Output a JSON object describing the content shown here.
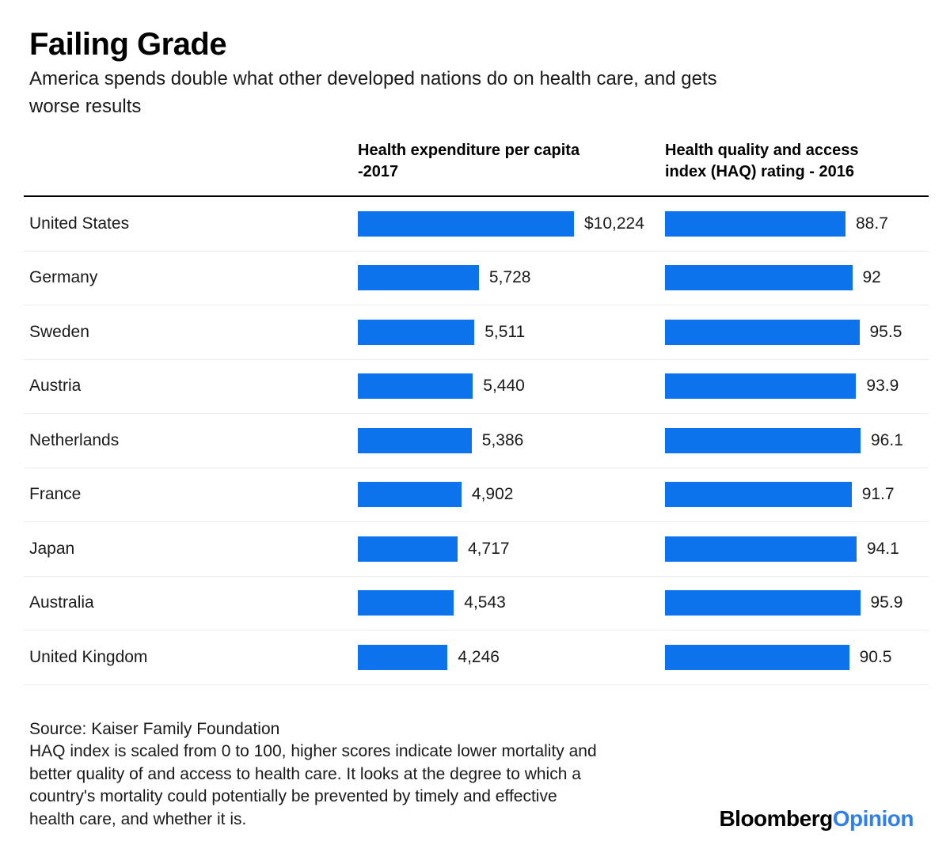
{
  "title": "Failing Grade",
  "subtitle_lines": [
    "America spends double what other developed nations do on health care, and gets",
    "worse results"
  ],
  "columns": {
    "expenditure": {
      "header_line1": "Health expenditure per capita",
      "header_line2": "-2017"
    },
    "haq": {
      "header_line1": "Health quality and access",
      "header_line2": "index (HAQ) rating - 2016"
    }
  },
  "rows": [
    {
      "country": "United States",
      "expenditure": 10224,
      "expenditure_label": "$10,224",
      "haq": 88.7,
      "haq_label": "88.7"
    },
    {
      "country": "Germany",
      "expenditure": 5728,
      "expenditure_label": "5,728",
      "haq": 92,
      "haq_label": "92"
    },
    {
      "country": "Sweden",
      "expenditure": 5511,
      "expenditure_label": "5,511",
      "haq": 95.5,
      "haq_label": "95.5"
    },
    {
      "country": "Austria",
      "expenditure": 5440,
      "expenditure_label": "5,440",
      "haq": 93.9,
      "haq_label": "93.9"
    },
    {
      "country": "Netherlands",
      "expenditure": 5386,
      "expenditure_label": "5,386",
      "haq": 96.1,
      "haq_label": "96.1"
    },
    {
      "country": "France",
      "expenditure": 4902,
      "expenditure_label": "4,902",
      "haq": 91.7,
      "haq_label": "91.7"
    },
    {
      "country": "Japan",
      "expenditure": 4717,
      "expenditure_label": "4,717",
      "haq": 94.1,
      "haq_label": "94.1"
    },
    {
      "country": "Australia",
      "expenditure": 4543,
      "expenditure_label": "4,543",
      "haq": 95.9,
      "haq_label": "95.9"
    },
    {
      "country": "United Kingdom",
      "expenditure": 4246,
      "expenditure_label": "4,246",
      "haq": 90.5,
      "haq_label": "90.5"
    }
  ],
  "footer": {
    "source": "Source: Kaiser Family Foundation",
    "note_lines": [
      "HAQ index is scaled from 0 to 100, higher scores indicate lower mortality and",
      "better quality of and access to health care. It looks at the degree to which a",
      "country's mortality could potentially be prevented by timely and effective",
      "health care, and whether it is."
    ],
    "logo_black": "Bloomberg",
    "logo_blue": "Opinion"
  },
  "colors": {
    "bar": "#0d73ec",
    "separator": "#edeaea",
    "header_rule": "#000000",
    "logo_blue": "#2f80ed",
    "text": "#1a1a1a"
  },
  "chart_data": {
    "type": "bar",
    "orientation": "horizontal",
    "title": "Failing Grade",
    "subtitle": "America spends double what other developed nations do on health care, and gets worse results",
    "source": "Kaiser Family Foundation",
    "note": "HAQ index is scaled from 0 to 100, higher scores indicate lower mortality and better quality of and access to health care. It looks at the degree to which a country's mortality could potentially be prevented by timely and effective health care, and whether it is.",
    "categories": [
      "United States",
      "Germany",
      "Sweden",
      "Austria",
      "Netherlands",
      "France",
      "Japan",
      "Australia",
      "United Kingdom"
    ],
    "series": [
      {
        "name": "Health expenditure per capita -2017",
        "unit": "USD",
        "values": [
          10224,
          5728,
          5511,
          5440,
          5386,
          4902,
          4717,
          4543,
          4246
        ],
        "labels": [
          "$10,224",
          "5,728",
          "5,511",
          "5,440",
          "5,386",
          "4,902",
          "4,717",
          "4,543",
          "4,246"
        ],
        "xlim": [
          0,
          10224
        ]
      },
      {
        "name": "Health quality and access index (HAQ) rating - 2016",
        "unit": "index",
        "values": [
          88.7,
          92,
          95.5,
          93.9,
          96.1,
          91.7,
          94.1,
          95.9,
          90.5
        ],
        "labels": [
          "88.7",
          "92",
          "95.5",
          "93.9",
          "96.1",
          "91.7",
          "94.1",
          "95.9",
          "90.5"
        ],
        "xlim": [
          0,
          100
        ]
      }
    ],
    "grid": false,
    "legend_position": "none",
    "bar_color": "#0d73ec",
    "value_labels": "end-of-bar"
  }
}
